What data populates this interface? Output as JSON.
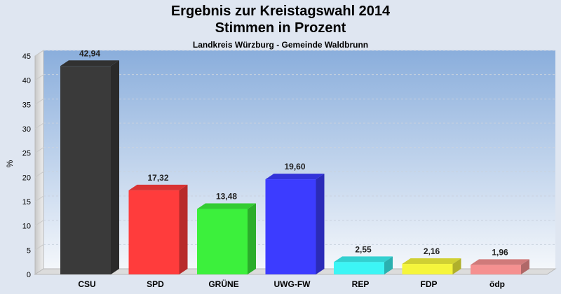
{
  "chart_data": {
    "type": "bar",
    "title": "Ergebnis zur Kreistagswahl 2014",
    "subtitle": "Stimmen in Prozent",
    "caption": "Landkreis Würzburg - Gemeinde Waldbrunn",
    "ylabel": "%",
    "xlabel": "",
    "ylim": [
      0,
      45
    ],
    "yticks": [
      "0",
      "5",
      "10",
      "15",
      "20",
      "25",
      "30",
      "35",
      "40",
      "45"
    ],
    "grid": true,
    "categories": [
      "CSU",
      "SPD",
      "GRÜNE",
      "UWG-FW",
      "REP",
      "FDP",
      "ödp"
    ],
    "values": [
      42.94,
      17.32,
      13.48,
      19.6,
      2.55,
      2.16,
      1.96
    ],
    "value_labels": [
      "42,94",
      "17,32",
      "13,48",
      "19,60",
      "2,55",
      "2,16",
      "1,96"
    ],
    "colors": [
      "#3a3a3a",
      "#ff3c3c",
      "#3cf03c",
      "#3c3cff",
      "#3cf5f5",
      "#f5f53c",
      "#f59090"
    ]
  }
}
